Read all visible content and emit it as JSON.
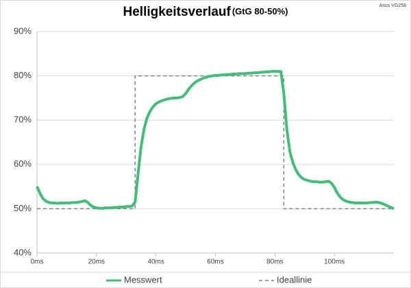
{
  "chart_data": {
    "type": "line",
    "title": "Helligkeitsverlauf",
    "subtitle": "(GtG 80-50%)",
    "annotation": "Asus VG258",
    "xlim": [
      0,
      120
    ],
    "xticks": [
      {
        "value": 0,
        "label": "0ms"
      },
      {
        "value": 20,
        "label": "20ms"
      },
      {
        "value": 40,
        "label": "40ms"
      },
      {
        "value": 60,
        "label": "60ms"
      },
      {
        "value": 80,
        "label": "80ms"
      },
      {
        "value": 100,
        "label": "100ms"
      }
    ],
    "ylim": [
      40,
      90
    ],
    "yticks": [
      {
        "value": 40,
        "label": "40%"
      },
      {
        "value": 50,
        "label": "50%"
      },
      {
        "value": 60,
        "label": "60%"
      },
      {
        "value": 70,
        "label": "70%"
      },
      {
        "value": 80,
        "label": "80%"
      },
      {
        "value": 90,
        "label": "90%"
      }
    ],
    "grid": true,
    "legend": "bottom",
    "series": [
      {
        "name": "Messwert",
        "color": "#3dbf78",
        "style": "solid",
        "x": [
          0,
          1,
          2,
          3,
          4,
          5,
          6,
          7,
          8,
          9,
          10,
          11,
          12,
          13,
          14,
          15,
          16,
          17,
          18,
          19,
          20,
          21,
          22,
          23,
          24,
          25,
          26,
          27,
          28,
          29,
          30,
          31,
          32,
          33,
          34,
          35,
          36,
          37,
          38,
          39,
          40,
          41,
          42,
          43,
          44,
          45,
          46,
          47,
          48,
          49,
          50,
          51,
          52,
          53,
          54,
          55,
          56,
          57,
          58,
          59,
          60,
          61,
          62,
          63,
          64,
          65,
          66,
          67,
          68,
          69,
          70,
          71,
          72,
          73,
          74,
          75,
          76,
          77,
          78,
          79,
          80,
          81,
          82,
          83,
          84,
          85,
          86,
          87,
          88,
          89,
          90,
          91,
          92,
          93,
          94,
          95,
          96,
          97,
          98,
          99,
          100,
          101,
          102,
          103,
          104,
          105,
          106,
          107,
          108,
          109,
          110,
          111,
          112,
          113,
          114,
          115,
          116,
          117,
          118,
          119,
          120
        ],
        "values": [
          55,
          53.5,
          52.3,
          51.7,
          51.4,
          51.3,
          51.3,
          51.2,
          51.3,
          51.3,
          51.3,
          51.3,
          51.4,
          51.4,
          51.5,
          51.6,
          51.8,
          51.5,
          50.8,
          50.4,
          50.2,
          50.1,
          50.1,
          50.2,
          50.2,
          50.2,
          50.3,
          50.3,
          50.4,
          50.4,
          50.5,
          50.5,
          50.6,
          51.5,
          58,
          64,
          68,
          70.5,
          72,
          73,
          73.7,
          74.1,
          74.4,
          74.6,
          74.8,
          74.9,
          75,
          75,
          75.1,
          75.3,
          76,
          77,
          77.8,
          78.4,
          78.9,
          79.2,
          79.5,
          79.7,
          79.9,
          80,
          80.1,
          80.1,
          80.2,
          80.2,
          80.3,
          80.3,
          80.4,
          80.4,
          80.5,
          80.5,
          80.5,
          80.6,
          80.6,
          80.7,
          80.7,
          80.8,
          80.8,
          80.9,
          80.9,
          81,
          81,
          81,
          81,
          76,
          68,
          63,
          60.5,
          58.8,
          57.7,
          57,
          56.6,
          56.4,
          56.2,
          56.1,
          56.1,
          56,
          56,
          56.1,
          56.2,
          55.8,
          54.8,
          53.5,
          52.6,
          52,
          51.7,
          51.5,
          51.4,
          51.3,
          51.3,
          51.3,
          51.3,
          51.3,
          51.4,
          51.4,
          51.5,
          51.4,
          51.2,
          50.9,
          50.6,
          50.3,
          50
        ]
      },
      {
        "name": "Ideallinie",
        "color": "#7f7f7f",
        "style": "dashed",
        "x": [
          0,
          33,
          33,
          83,
          83,
          120
        ],
        "values": [
          50,
          50,
          80,
          80,
          50,
          50
        ]
      }
    ]
  }
}
